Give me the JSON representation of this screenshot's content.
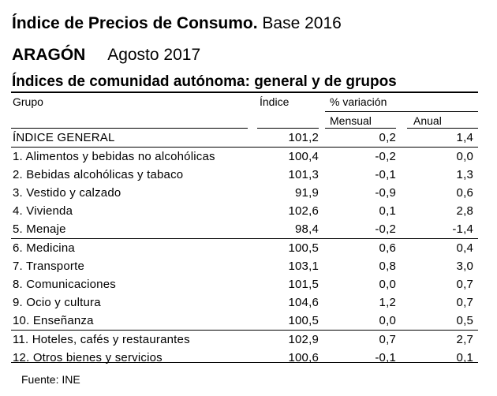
{
  "header": {
    "title_bold": "Índice de Precios de Consumo.",
    "title_rest": "Base 2016",
    "region": "ARAGÓN",
    "period": "Agosto 2017",
    "subtitle": "Índices de comunidad autónoma: general y de grupos"
  },
  "columns": {
    "group": "Grupo",
    "index": "Índice",
    "variation": "% variación",
    "monthly": "Mensual",
    "annual": "Anual"
  },
  "rows": [
    {
      "name": "ÍNDICE GENERAL",
      "index": "101,2",
      "monthly": "0,2",
      "annual": "1,4"
    },
    {
      "name": "1. Alimentos y bebidas no alcohólicas",
      "index": "100,4",
      "monthly": "-0,2",
      "annual": "0,0"
    },
    {
      "name": "2. Bebidas alcohólicas y tabaco",
      "index": "101,3",
      "monthly": "-0,1",
      "annual": "1,3"
    },
    {
      "name": "3. Vestido y calzado",
      "index": "91,9",
      "monthly": "-0,9",
      "annual": "0,6"
    },
    {
      "name": "4. Vivienda",
      "index": "102,6",
      "monthly": "0,1",
      "annual": "2,8"
    },
    {
      "name": "5. Menaje",
      "index": "98,4",
      "monthly": "-0,2",
      "annual": "-1,4"
    },
    {
      "name": "6. Medicina",
      "index": "100,5",
      "monthly": "0,6",
      "annual": "0,4"
    },
    {
      "name": "7. Transporte",
      "index": "103,1",
      "monthly": "0,8",
      "annual": "3,0"
    },
    {
      "name": "8. Comunicaciones",
      "index": "101,5",
      "monthly": "0,0",
      "annual": "0,7"
    },
    {
      "name": "9. Ocio y cultura",
      "index": "104,6",
      "monthly": "1,2",
      "annual": "0,7"
    },
    {
      "name": "10. Enseñanza",
      "index": "100,5",
      "monthly": "0,0",
      "annual": "0,5"
    },
    {
      "name": "11. Hoteles, cafés y restaurantes",
      "index": "102,9",
      "monthly": "0,7",
      "annual": "2,7"
    },
    {
      "name": "12. Otros bienes y servicios",
      "index": "100,6",
      "monthly": "-0,1",
      "annual": "0,1"
    }
  ],
  "footer": {
    "source": "Fuente: INE"
  }
}
